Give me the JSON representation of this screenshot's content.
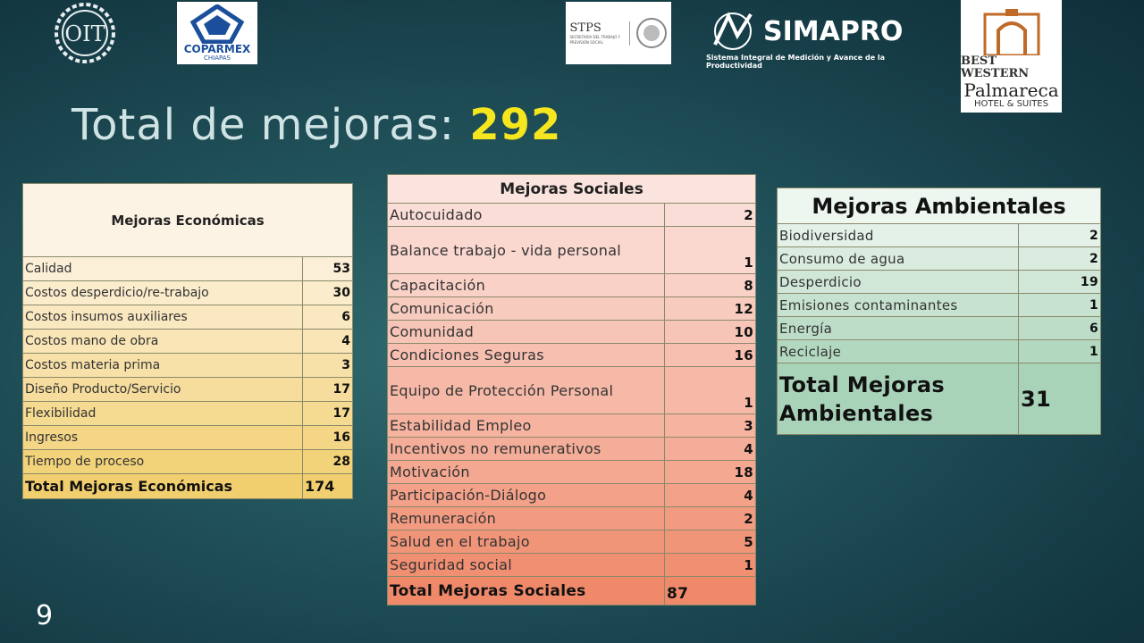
{
  "logos": {
    "oit": "OIT",
    "coparmex": "COPARMEX",
    "coparmex_sub": "CHIAPAS",
    "stps": "STPS",
    "stps_sub": "SECRETARÍA DEL TRABAJO Y PREVISIÓN SOCIAL",
    "simapro": "SIMAPRO",
    "simapro_sub": "Sistema Integral de Medición y Avance de la Productividad",
    "bw_line1": "BEST WESTERN",
    "bw_line2": "Palmareca",
    "bw_line3": "HOTEL & SUITES"
  },
  "title": {
    "text": "Total de mejoras: ",
    "value": "292"
  },
  "economicas": {
    "header": "Mejoras Económicas",
    "rows": [
      {
        "label": "Calidad",
        "value": "53"
      },
      {
        "label": "Costos desperdicio/re-trabajo",
        "value": "30"
      },
      {
        "label": "Costos insumos auxiliares",
        "value": "6"
      },
      {
        "label": "Costos mano de obra",
        "value": "4"
      },
      {
        "label": "Costos materia prima",
        "value": "3"
      },
      {
        "label": "Diseño Producto/Servicio",
        "value": "17"
      },
      {
        "label": "Flexibilidad",
        "value": "17"
      },
      {
        "label": "Ingresos",
        "value": "16"
      },
      {
        "label": "Tiempo de proceso",
        "value": "28"
      }
    ],
    "total_label": "Total Mejoras Económicas",
    "total_value": "174"
  },
  "sociales": {
    "header": "Mejoras Sociales",
    "rows": [
      {
        "label": "Autocuidado",
        "value": "2"
      },
      {
        "label": "Balance trabajo - vida personal",
        "value": "1"
      },
      {
        "label": "Capacitación",
        "value": "8"
      },
      {
        "label": "Comunicación",
        "value": "12"
      },
      {
        "label": "Comunidad",
        "value": "10"
      },
      {
        "label": "Condiciones Seguras",
        "value": "16"
      },
      {
        "label": "Equipo de Protección Personal",
        "value": "1"
      },
      {
        "label": "Estabilidad  Empleo",
        "value": "3"
      },
      {
        "label": "Incentivos no remunerativos",
        "value": "4"
      },
      {
        "label": "Motivación",
        "value": "18"
      },
      {
        "label": "Participación-Diálogo",
        "value": "4"
      },
      {
        "label": "Remuneración",
        "value": "2"
      },
      {
        "label": "Salud en el trabajo",
        "value": "5"
      },
      {
        "label": "Seguridad social",
        "value": "1"
      }
    ],
    "total_label": "Total Mejoras Sociales",
    "total_value": "87"
  },
  "ambientales": {
    "header": "Mejoras Ambientales",
    "rows": [
      {
        "label": "Biodiversidad",
        "value": "2"
      },
      {
        "label": "Consumo de agua",
        "value": "2"
      },
      {
        "label": "Desperdicio",
        "value": "19"
      },
      {
        "label": "Emisiones contaminantes",
        "value": "1"
      },
      {
        "label": "Energía",
        "value": "6"
      },
      {
        "label": "Reciclaje",
        "value": "1"
      }
    ],
    "total_label": "Total Mejoras Ambientales",
    "total_value": "31"
  },
  "page_number": "9",
  "colors": {
    "eco_top": "#fdf3e4",
    "eco_bottom": "#f2cf6e",
    "soc_top": "#fbe3de",
    "soc_bottom": "#f0896a",
    "amb_top": "#eef6f0",
    "amb_bottom": "#a9d3b8",
    "accent": "#f6e61e"
  }
}
